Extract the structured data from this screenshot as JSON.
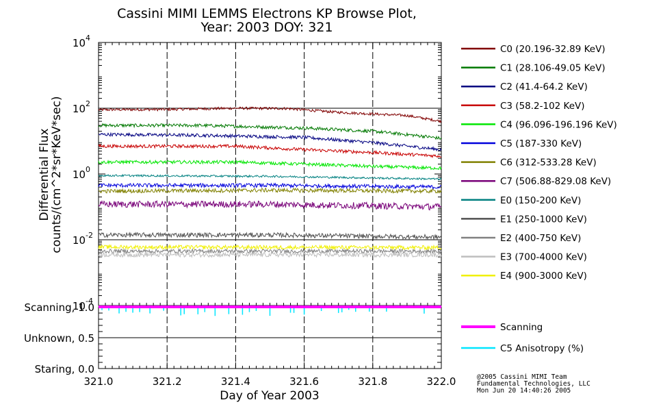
{
  "chart_data": {
    "type": "line",
    "title_line1": "Cassini MIMI LEMMS Electrons KP Browse Plot,",
    "title_line2": "Year: 2003 DOY: 321",
    "xlabel": "Day of Year 2003",
    "ylabel_line1": "Differential Flux",
    "ylabel_line2": "counts/(cm^2*sr*KeV*sec)",
    "xlim": [
      321.0,
      322.0
    ],
    "x_ticks": [
      "321.0",
      "321.2",
      "321.4",
      "321.6",
      "321.8",
      "322.0"
    ],
    "ylim_log10": [
      -4,
      4
    ],
    "y_ticks": [
      {
        "base": "10",
        "exp": "4",
        "log": 4
      },
      {
        "base": "10",
        "exp": "2",
        "log": 2
      },
      {
        "base": "10",
        "exp": "0",
        "log": 0
      },
      {
        "base": "10",
        "exp": "-2",
        "log": -2
      },
      {
        "base": "10",
        "exp": "-4",
        "log": -4
      }
    ],
    "series": [
      {
        "name": "C0 (20.196-32.89 KeV)",
        "color": "#800000",
        "profile": [
          [
            321.0,
            90
          ],
          [
            321.2,
            92
          ],
          [
            321.4,
            100
          ],
          [
            321.55,
            98
          ],
          [
            321.7,
            75
          ],
          [
            321.9,
            60
          ],
          [
            322.0,
            40
          ]
        ],
        "noise": 0.04
      },
      {
        "name": "C1 (28.106-49.05 KeV)",
        "color": "#007800",
        "profile": [
          [
            321.0,
            30
          ],
          [
            321.3,
            30
          ],
          [
            321.6,
            25
          ],
          [
            321.8,
            20
          ],
          [
            321.95,
            14
          ],
          [
            322.0,
            12
          ]
        ],
        "noise": 0.05
      },
      {
        "name": "C2 (41.4-64.2 KeV)",
        "color": "#000080",
        "profile": [
          [
            321.0,
            16
          ],
          [
            321.3,
            15
          ],
          [
            321.6,
            13
          ],
          [
            321.8,
            9
          ],
          [
            322.0,
            5.5
          ]
        ],
        "noise": 0.05
      },
      {
        "name": "C3 (58.2-102 KeV)",
        "color": "#c80000",
        "profile": [
          [
            321.0,
            7
          ],
          [
            321.4,
            7
          ],
          [
            321.6,
            5.5
          ],
          [
            321.8,
            4.5
          ],
          [
            322.0,
            3.5
          ]
        ],
        "noise": 0.05
      },
      {
        "name": "C4 (96.096-196.196 KeV)",
        "color": "#00e600",
        "profile": [
          [
            321.0,
            2.3
          ],
          [
            321.4,
            2.3
          ],
          [
            321.6,
            2.0
          ],
          [
            321.8,
            1.7
          ],
          [
            322.0,
            1.5
          ]
        ],
        "noise": 0.05
      },
      {
        "name": "C5 (187-330 KeV)",
        "color": "#0000dc",
        "profile": [
          [
            321.0,
            0.45
          ],
          [
            321.5,
            0.45
          ],
          [
            322.0,
            0.4
          ]
        ],
        "noise": 0.06
      },
      {
        "name": "C6 (312-533.28 KeV)",
        "color": "#808000",
        "profile": [
          [
            321.0,
            0.3
          ],
          [
            321.5,
            0.32
          ],
          [
            322.0,
            0.3
          ]
        ],
        "noise": 0.06
      },
      {
        "name": "C7 (506.88-829.08 KeV)",
        "color": "#780078",
        "profile": [
          [
            321.0,
            0.12
          ],
          [
            321.5,
            0.12
          ],
          [
            322.0,
            0.1
          ]
        ],
        "noise": 0.1
      },
      {
        "name": "E0 (150-200 KeV)",
        "color": "#008080",
        "profile": [
          [
            321.0,
            0.9
          ],
          [
            321.5,
            0.85
          ],
          [
            322.0,
            0.7
          ]
        ],
        "noise": 0.03
      },
      {
        "name": "E1 (250-1000 KeV)",
        "color": "#505050",
        "profile": [
          [
            321.0,
            0.014
          ],
          [
            321.5,
            0.014
          ],
          [
            322.0,
            0.012
          ]
        ],
        "noise": 0.07
      },
      {
        "name": "E2 (400-750 KeV)",
        "color": "#808080",
        "profile": [
          [
            321.0,
            0.0045
          ],
          [
            322.0,
            0.0045
          ]
        ],
        "noise": 0.06
      },
      {
        "name": "E3 (700-4000 KeV)",
        "color": "#bebebe",
        "profile": [
          [
            321.0,
            0.0035
          ],
          [
            322.0,
            0.0035
          ]
        ],
        "noise": 0.07
      },
      {
        "name": "E4 (900-3000 KeV)",
        "color": "#f0f000",
        "profile": [
          [
            321.0,
            0.006
          ],
          [
            322.0,
            0.0058
          ]
        ],
        "noise": 0.06
      }
    ],
    "status_panel": {
      "y_ticks": [
        {
          "label": "Scanning, 1.0",
          "value": 1.0
        },
        {
          "label": "Unknown, 0.5",
          "value": 0.5
        },
        {
          "label": "Staring, 0.0",
          "value": 0.0
        }
      ],
      "series": [
        {
          "name": "Scanning",
          "color": "#ff00ff",
          "value": 1.0
        },
        {
          "name": "C5 Anisotropy (%)",
          "color": "#00e6ff"
        }
      ]
    }
  },
  "footer": {
    "line1": "@2005 Cassini MIMI Team",
    "line2": "Fundamental Technologies, LLC",
    "line3": "Mon Jun 20 14:40:26 2005"
  }
}
